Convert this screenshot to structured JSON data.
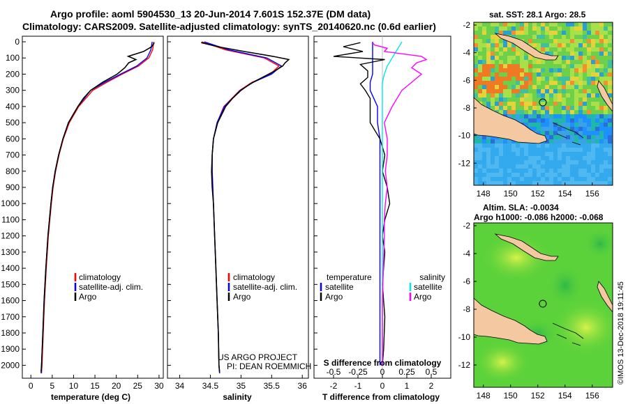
{
  "header": {
    "line1": "Argo profile: aoml 5904530_13 20-Jun-2014 7.601S 152.37E (DM data)",
    "line2": "Climatology: CARS2009. Satellite-adjusted climatology: synTS_20140620.nc (0.6d earlier)"
  },
  "credit": {
    "line1": "US ARGO PROJECT",
    "line2": "PI: DEAN ROEMMICH"
  },
  "stamp": "©IMOS 13-Dec-2018 19:11:45",
  "colors": {
    "climatology": "#ff0000",
    "satellite": "#0000ff",
    "argo": "#000000",
    "sal_satellite": "#00e5ee",
    "sal_argo": "#ff00ff"
  },
  "chart_data": [
    {
      "type": "line",
      "name": "temperature-profile",
      "xlabel": "temperature (deg C)",
      "ylabel": "",
      "xlim": [
        -2,
        31
      ],
      "ylim": [
        2080,
        0
      ],
      "xticks": [
        "0",
        "5",
        "10",
        "15",
        "20",
        "25",
        "30"
      ],
      "yticks": [
        "0",
        "100",
        "200",
        "300",
        "400",
        "500",
        "600",
        "700",
        "800",
        "900",
        "1000",
        "1100",
        "1200",
        "1300",
        "1400",
        "1500",
        "1600",
        "1700",
        "1800",
        "1900",
        "2000"
      ],
      "legend": [
        "climatology",
        "satellite-adj. clim.",
        "Argo"
      ],
      "series": [
        {
          "name": "climatology",
          "depth": [
            0,
            50,
            100,
            150,
            200,
            250,
            300,
            400,
            500,
            600,
            700,
            800,
            900,
            1000,
            1200,
            1400,
            1600,
            1800,
            2000,
            2050
          ],
          "values": [
            28.8,
            28.5,
            27.6,
            25.2,
            21.4,
            17.8,
            14.5,
            11.2,
            9.0,
            7.6,
            6.6,
            5.8,
            5.2,
            4.8,
            4.1,
            3.6,
            3.2,
            2.9,
            2.6,
            2.5
          ]
        },
        {
          "name": "satellite-adj. clim.",
          "depth": [
            0,
            50,
            100,
            150,
            200,
            250,
            300,
            400,
            500,
            600,
            700,
            800,
            900,
            1000,
            1200,
            1400,
            1600,
            1800,
            2000,
            2050
          ],
          "values": [
            28.4,
            28.1,
            27.2,
            24.8,
            21.0,
            17.3,
            14.0,
            11.0,
            8.8,
            7.5,
            6.5,
            5.7,
            5.1,
            4.7,
            4.0,
            3.5,
            3.1,
            2.8,
            2.5,
            2.4
          ]
        },
        {
          "name": "Argo",
          "depth": [
            5,
            30,
            60,
            90,
            110,
            130,
            160,
            200,
            250,
            300,
            350,
            400,
            500,
            600,
            700,
            800,
            900,
            1000,
            1200,
            1400,
            1600,
            1800,
            2000,
            2040
          ],
          "values": [
            28.9,
            28.3,
            26.4,
            22.8,
            24.6,
            22.9,
            22.0,
            20.2,
            16.8,
            14.0,
            12.3,
            11.0,
            8.8,
            7.5,
            6.5,
            5.7,
            5.1,
            4.7,
            4.0,
            3.5,
            3.1,
            2.8,
            2.5,
            2.4
          ]
        }
      ]
    },
    {
      "type": "line",
      "name": "salinity-profile",
      "xlabel": "salinity",
      "ylabel": "",
      "xlim": [
        33.8,
        36.1
      ],
      "ylim": [
        2080,
        0
      ],
      "xticks": [
        "34",
        "34.5",
        "35",
        "35.5",
        "36"
      ],
      "legend": [
        "climatology",
        "satellite-adj. clim.",
        "Argo"
      ],
      "series": [
        {
          "name": "climatology",
          "depth": [
            0,
            50,
            100,
            150,
            200,
            250,
            300,
            400,
            500,
            600,
            700,
            800,
            1000,
            1200,
            1400,
            1600,
            1800,
            2000,
            2050
          ],
          "values": [
            34.36,
            34.75,
            35.38,
            35.62,
            35.48,
            35.18,
            34.98,
            34.72,
            34.61,
            34.55,
            34.53,
            34.53,
            34.55,
            34.57,
            34.59,
            34.61,
            34.63,
            34.64,
            34.65
          ]
        },
        {
          "name": "satellite-adj. clim.",
          "depth": [
            0,
            50,
            100,
            150,
            200,
            250,
            300,
            400,
            500,
            600,
            700,
            800,
            1000,
            1200,
            1400,
            1600,
            1800,
            2000,
            2050
          ],
          "values": [
            34.4,
            34.8,
            35.42,
            35.66,
            35.5,
            35.2,
            34.99,
            34.73,
            34.61,
            34.55,
            34.53,
            34.53,
            34.55,
            34.57,
            34.59,
            34.61,
            34.63,
            34.64,
            34.65
          ]
        },
        {
          "name": "Argo",
          "depth": [
            5,
            30,
            60,
            90,
            110,
            130,
            150,
            180,
            220,
            260,
            300,
            350,
            400,
            500,
            600,
            700,
            800,
            900,
            1000,
            1200,
            1400,
            1600,
            1800,
            2000,
            2040
          ],
          "values": [
            34.35,
            34.62,
            35.05,
            35.52,
            35.78,
            35.72,
            35.68,
            35.55,
            35.35,
            35.15,
            35.0,
            34.86,
            34.75,
            34.62,
            34.55,
            34.53,
            34.52,
            34.53,
            34.55,
            34.57,
            34.59,
            34.61,
            34.63,
            34.64,
            34.65
          ]
        }
      ]
    },
    {
      "type": "line",
      "name": "difference-profile",
      "xlabel": "T difference from climatology",
      "xlabel_top": "S difference from climatology",
      "xlim": [
        -2.8,
        2.8
      ],
      "ylim": [
        2080,
        0
      ],
      "xticks": [
        "-2",
        "-1",
        "0",
        "1",
        "2"
      ],
      "xticks_salinity": [
        "-0.5",
        "-0.25",
        "0",
        "0.25",
        "0.5"
      ],
      "legend_temperature": {
        "title": "temperature",
        "items": [
          "satellite",
          "Argo"
        ]
      },
      "legend_salinity": {
        "title": "salinity",
        "items": [
          "satellite",
          "Argo"
        ]
      },
      "series": [
        {
          "name": "T satellite",
          "depth": [
            0,
            50,
            100,
            150,
            200,
            250,
            300,
            400,
            500,
            600,
            800,
            1000,
            1200,
            1500,
            1800,
            2000
          ],
          "values": [
            -0.4,
            -0.4,
            -0.4,
            -0.4,
            -0.4,
            -0.5,
            -0.5,
            -0.2,
            -0.2,
            -0.1,
            -0.1,
            -0.1,
            -0.1,
            -0.1,
            -0.1,
            -0.1
          ]
        },
        {
          "name": "T Argo",
          "depth": [
            5,
            30,
            60,
            90,
            110,
            140,
            180,
            220,
            260,
            300,
            350,
            400,
            500,
            600,
            700,
            800,
            900,
            1000,
            1100,
            1200,
            1300,
            1500,
            1700,
            1900,
            2000
          ],
          "values": [
            -0.9,
            -1.6,
            -0.8,
            -2.0,
            0.1,
            -0.9,
            -0.6,
            -0.6,
            -0.9,
            -0.7,
            -0.5,
            -0.5,
            -0.5,
            -0.1,
            0.1,
            0.0,
            0.2,
            0.3,
            0.1,
            0.0,
            0.1,
            0.0,
            0.1,
            0.05,
            0.0
          ]
        },
        {
          "name": "S satellite",
          "depth": [
            0,
            50,
            100,
            150,
            200,
            250,
            300,
            400,
            500,
            600,
            700,
            800,
            1000,
            1200,
            1400,
            1600,
            1800,
            2000
          ],
          "values": [
            0.2,
            0.15,
            0.1,
            0.05,
            0.02,
            0.0,
            0.0,
            0.0,
            0.0,
            0.0,
            0.0,
            0.0,
            0.0,
            0.0,
            0.0,
            0.0,
            0.0,
            0.0
          ]
        },
        {
          "name": "S Argo",
          "depth": [
            5,
            20,
            40,
            60,
            90,
            110,
            130,
            160,
            200,
            250,
            300,
            350,
            400,
            500,
            600,
            700,
            800,
            900,
            1000,
            1100,
            1200,
            1400,
            1600,
            1800,
            2000
          ],
          "values": [
            -0.1,
            -0.08,
            0.05,
            0.02,
            0.4,
            0.45,
            0.35,
            0.3,
            0.4,
            0.3,
            0.2,
            0.15,
            0.1,
            0.02,
            0.05,
            0.05,
            0.03,
            0.05,
            0.03,
            0.02,
            0.02,
            0.01,
            0.0,
            0.0,
            0.0
          ]
        }
      ]
    },
    {
      "type": "heatmap",
      "name": "sst-map",
      "title": "sat. SST: 28.1 Argo: 28.5",
      "xlim": [
        147.3,
        157.5
      ],
      "ylim": [
        -13.6,
        -1.8
      ],
      "xticks": [
        "148",
        "150",
        "152",
        "154",
        "156"
      ],
      "yticks": [
        "-2",
        "-4",
        "-6",
        "-8",
        "-10",
        "-12"
      ],
      "float_position": {
        "lon": 152.37,
        "lat": -7.601
      }
    },
    {
      "type": "heatmap",
      "name": "sla-map",
      "title_line1": "Altim. SLA: -0.0034",
      "title_line2": "Argo h1000: -0.086 h2000: -0.068",
      "xlim": [
        147.3,
        157.5
      ],
      "ylim": [
        -13.6,
        -1.8
      ],
      "xticks": [
        "148",
        "150",
        "152",
        "154",
        "156"
      ],
      "yticks": [
        "-2",
        "-4",
        "-6",
        "-8",
        "-10",
        "-12"
      ],
      "float_position": {
        "lon": 152.37,
        "lat": -7.601
      }
    }
  ]
}
